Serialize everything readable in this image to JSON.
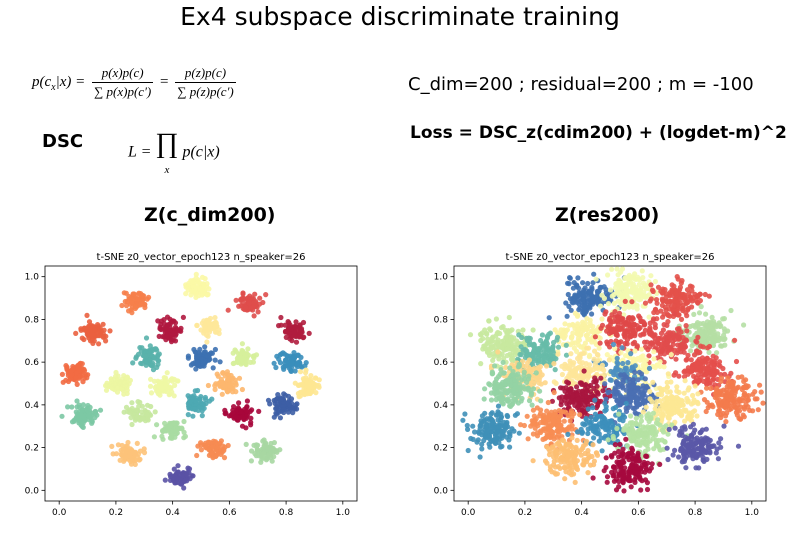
{
  "page": {
    "title": "Ex4 subspace discriminate training",
    "dsc_label": "DSC",
    "params": "C_dim=200 ; residual=200 ; m = -100",
    "loss": "Loss = DSC_z(cdim200) + (logdet-m)^2",
    "formula1": {
      "lhs": "p(c",
      "lhs_sub": "x",
      "lhs_rest": "|x) =",
      "frac1_num": "p(x)p(c)",
      "frac1_den": "p(x)p(c′)",
      "frac2_num": "p(z)p(c)",
      "frac2_den": "p(z)p(c′)"
    },
    "formula2": {
      "lhs": "L =",
      "product": "∏",
      "product_sub": "x",
      "body": "p(c|x)"
    },
    "subtitle_left": "Z(c_dim200)",
    "subtitle_right": "Z(res200)"
  },
  "chart_data": [
    {
      "type": "scatter",
      "title": "t-SNE z0_vector_epoch123 n_speaker=26",
      "xlabel": "",
      "ylabel": "",
      "xlim": [
        0.0,
        1.0
      ],
      "ylim": [
        0.0,
        1.0
      ],
      "xticks": [
        "0.0",
        "0.2",
        "0.4",
        "0.6",
        "0.8",
        "1.0"
      ],
      "yticks": [
        "0.0",
        "0.2",
        "0.4",
        "0.6",
        "0.8",
        "1.0"
      ],
      "clusters": [
        {
          "x": 0.49,
          "y": 0.95,
          "color": "#fbf8a6",
          "n": 70
        },
        {
          "x": 0.27,
          "y": 0.89,
          "color": "#f67f4b",
          "n": 60
        },
        {
          "x": 0.67,
          "y": 0.87,
          "color": "#df4e4b",
          "n": 70
        },
        {
          "x": 0.12,
          "y": 0.74,
          "color": "#ea603f",
          "n": 75
        },
        {
          "x": 0.39,
          "y": 0.75,
          "color": "#b0183f",
          "n": 65
        },
        {
          "x": 0.53,
          "y": 0.77,
          "color": "#fee89a",
          "n": 60
        },
        {
          "x": 0.83,
          "y": 0.75,
          "color": "#b01d3e",
          "n": 65
        },
        {
          "x": 0.32,
          "y": 0.62,
          "color": "#59b1ab",
          "n": 65
        },
        {
          "x": 0.5,
          "y": 0.62,
          "color": "#3d71b1",
          "n": 70
        },
        {
          "x": 0.65,
          "y": 0.62,
          "color": "#d6ef9b",
          "n": 60
        },
        {
          "x": 0.82,
          "y": 0.6,
          "color": "#3a8ebb",
          "n": 65
        },
        {
          "x": 0.05,
          "y": 0.55,
          "color": "#f26c44",
          "n": 75
        },
        {
          "x": 0.21,
          "y": 0.5,
          "color": "#ecf6a2",
          "n": 65
        },
        {
          "x": 0.37,
          "y": 0.49,
          "color": "#eef7a4",
          "n": 65
        },
        {
          "x": 0.59,
          "y": 0.5,
          "color": "#fdb76e",
          "n": 65
        },
        {
          "x": 0.88,
          "y": 0.49,
          "color": "#fee792",
          "n": 70
        },
        {
          "x": 0.09,
          "y": 0.35,
          "color": "#7cc8a4",
          "n": 75
        },
        {
          "x": 0.28,
          "y": 0.36,
          "color": "#c6e89f",
          "n": 65
        },
        {
          "x": 0.48,
          "y": 0.41,
          "color": "#4ea8b2",
          "n": 60
        },
        {
          "x": 0.64,
          "y": 0.36,
          "color": "#a7073b",
          "n": 70
        },
        {
          "x": 0.79,
          "y": 0.4,
          "color": "#3d5ea5",
          "n": 70
        },
        {
          "x": 0.4,
          "y": 0.28,
          "color": "#a8dca2",
          "n": 60
        },
        {
          "x": 0.24,
          "y": 0.17,
          "color": "#fdc37a",
          "n": 65
        },
        {
          "x": 0.54,
          "y": 0.2,
          "color": "#f68b52",
          "n": 65
        },
        {
          "x": 0.73,
          "y": 0.18,
          "color": "#a7d7a2",
          "n": 75
        },
        {
          "x": 0.43,
          "y": 0.06,
          "color": "#5a52a5",
          "n": 60
        }
      ]
    },
    {
      "type": "scatter",
      "title": "t-SNE z0_vector_epoch123 n_speaker=26",
      "xlabel": "",
      "ylabel": "",
      "xlim": [
        0.0,
        1.0
      ],
      "ylim": [
        0.0,
        1.0
      ],
      "xticks": [
        "0.0",
        "0.2",
        "0.4",
        "0.6",
        "0.8",
        "1.0"
      ],
      "yticks": [
        "0.0",
        "0.2",
        "0.4",
        "0.6",
        "0.8",
        "1.0"
      ],
      "clusters": [
        {
          "x": 0.43,
          "y": 0.9,
          "color": "#3d70b0",
          "n": 140
        },
        {
          "x": 0.57,
          "y": 0.93,
          "color": "#f3f9b0",
          "n": 150
        },
        {
          "x": 0.73,
          "y": 0.89,
          "color": "#e3514a",
          "n": 140
        },
        {
          "x": 0.83,
          "y": 0.73,
          "color": "#b5dfa4",
          "n": 150
        },
        {
          "x": 0.4,
          "y": 0.73,
          "color": "#fbf3a3",
          "n": 120
        },
        {
          "x": 0.55,
          "y": 0.75,
          "color": "#df4848",
          "n": 130
        },
        {
          "x": 0.7,
          "y": 0.69,
          "color": "#e14d4c",
          "n": 130
        },
        {
          "x": 0.13,
          "y": 0.69,
          "color": "#c8e99e",
          "n": 150
        },
        {
          "x": 0.25,
          "y": 0.65,
          "color": "#67bba9",
          "n": 130
        },
        {
          "x": 0.58,
          "y": 0.56,
          "color": "#fdf7a8",
          "n": 140
        },
        {
          "x": 0.83,
          "y": 0.57,
          "color": "#e44f4b",
          "n": 140
        },
        {
          "x": 0.2,
          "y": 0.53,
          "color": "#fed68a",
          "n": 110
        },
        {
          "x": 0.53,
          "y": 0.56,
          "color": "#4c8fc0",
          "n": 60
        },
        {
          "x": 0.4,
          "y": 0.56,
          "color": "#fee599",
          "n": 110
        },
        {
          "x": 0.93,
          "y": 0.43,
          "color": "#f47b4c",
          "n": 150
        },
        {
          "x": 0.15,
          "y": 0.48,
          "color": "#93d3a4",
          "n": 150
        },
        {
          "x": 0.4,
          "y": 0.43,
          "color": "#a9153e",
          "n": 150
        },
        {
          "x": 0.57,
          "y": 0.45,
          "color": "#4a6fb3",
          "n": 150
        },
        {
          "x": 0.72,
          "y": 0.4,
          "color": "#fde894",
          "n": 150
        },
        {
          "x": 0.09,
          "y": 0.28,
          "color": "#3f90b8",
          "n": 140
        },
        {
          "x": 0.3,
          "y": 0.31,
          "color": "#f78d53",
          "n": 150
        },
        {
          "x": 0.48,
          "y": 0.3,
          "color": "#3c8fbb",
          "n": 120
        },
        {
          "x": 0.62,
          "y": 0.27,
          "color": "#b5e2a3",
          "n": 140
        },
        {
          "x": 0.8,
          "y": 0.21,
          "color": "#5a58a7",
          "n": 140
        },
        {
          "x": 0.36,
          "y": 0.15,
          "color": "#fdbf72",
          "n": 140
        },
        {
          "x": 0.57,
          "y": 0.11,
          "color": "#a6093e",
          "n": 150
        }
      ]
    }
  ]
}
